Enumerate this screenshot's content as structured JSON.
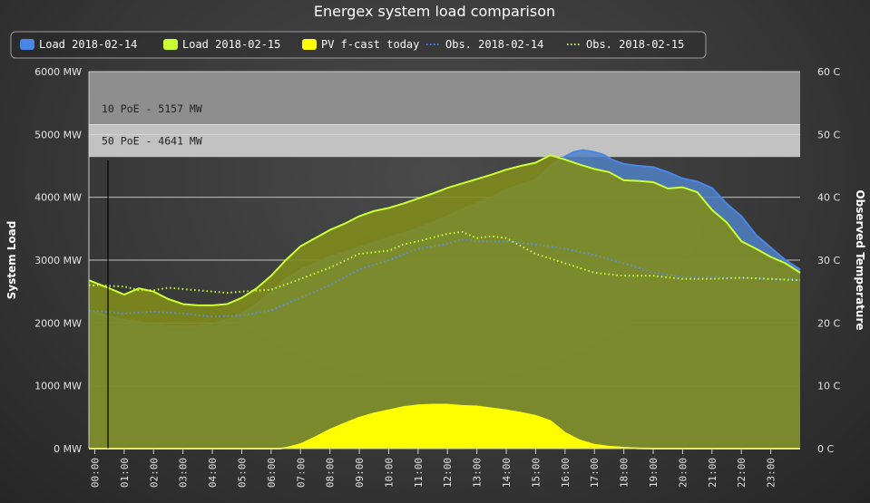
{
  "chart_data": {
    "type": "area",
    "title": "Energex system load comparison",
    "x_labels": [
      "00:00",
      "01:00",
      "02:00",
      "03:00",
      "04:00",
      "05:00",
      "06:00",
      "07:00",
      "08:00",
      "09:00",
      "10:00",
      "11:00",
      "12:00",
      "13:00",
      "14:00",
      "15:00",
      "16:00",
      "17:00",
      "18:00",
      "19:00",
      "20:00",
      "21:00",
      "22:00",
      "23:00"
    ],
    "y_left": {
      "label": "System Load",
      "min": 0,
      "max": 6000,
      "step": 1000,
      "tick_labels": [
        "0 MW",
        "1000 MW",
        "2000 MW",
        "3000 MW",
        "4000 MW",
        "5000 MW",
        "6000 MW"
      ]
    },
    "y_right": {
      "label": "Observed Temperature",
      "min": 0,
      "max": 60,
      "step": 10,
      "tick_labels": [
        "0 C",
        "10 C",
        "20 C",
        "30 C",
        "40 C",
        "50 C",
        "60 C"
      ]
    },
    "plot_bands": [
      {
        "from": 5157,
        "to": 6000,
        "label": "10 PoE - 5157 MW",
        "color": "#8e8e8e"
      },
      {
        "from": 4641,
        "to": 5157,
        "label": "50 PoE - 4641 MW",
        "color": "#c2c2c2"
      }
    ],
    "legend": {
      "placement": "top",
      "items": [
        {
          "label": "Load 2018-02-14",
          "symbol": "area",
          "color": "#4a86e8"
        },
        {
          "label": "Load 2018-02-15",
          "symbol": "area",
          "color": "#ccff33"
        },
        {
          "label": "PV f-cast today",
          "symbol": "area",
          "color": "#ffff00"
        },
        {
          "label": "Obs. 2018-02-14",
          "symbol": "dotted-line",
          "color": "#4a86e8"
        },
        {
          "label": "Obs. 2018-02-15",
          "symbol": "dotted-line",
          "color": "#ccff33"
        }
      ]
    },
    "series": [
      {
        "name": "Load 2018-02-14",
        "kind": "area",
        "axis": "left",
        "color": "#4a86e8",
        "fill": "#4f81c4",
        "fill_opacity": 0.85,
        "points": [
          [
            -0.2,
            2200
          ],
          [
            0.5,
            2100
          ],
          [
            1,
            2050
          ],
          [
            2,
            1980
          ],
          [
            2.5,
            1950
          ],
          [
            3,
            1940
          ],
          [
            3.5,
            1950
          ],
          [
            4,
            1980
          ],
          [
            4.5,
            2050
          ],
          [
            5,
            2150
          ],
          [
            5.5,
            2300
          ],
          [
            6,
            2500
          ],
          [
            6.5,
            2700
          ],
          [
            7,
            2850
          ],
          [
            7.5,
            2950
          ],
          [
            8,
            3050
          ],
          [
            8.5,
            3120
          ],
          [
            9,
            3200
          ],
          [
            9.5,
            3280
          ],
          [
            10,
            3350
          ],
          [
            10.5,
            3430
          ],
          [
            11,
            3500
          ],
          [
            11.5,
            3600
          ],
          [
            12,
            3700
          ],
          [
            12.5,
            3800
          ],
          [
            13,
            3900
          ],
          [
            13.5,
            4000
          ],
          [
            14,
            4120
          ],
          [
            14.5,
            4200
          ],
          [
            15,
            4280
          ],
          [
            15.5,
            4500
          ],
          [
            16,
            4650
          ],
          [
            16.3,
            4720
          ],
          [
            16.6,
            4750
          ],
          [
            17,
            4720
          ],
          [
            17.3,
            4680
          ],
          [
            17.6,
            4600
          ],
          [
            18,
            4530
          ],
          [
            18.5,
            4500
          ],
          [
            19,
            4480
          ],
          [
            19.5,
            4400
          ],
          [
            20,
            4300
          ],
          [
            20.5,
            4250
          ],
          [
            21,
            4150
          ],
          [
            21.5,
            3900
          ],
          [
            22,
            3700
          ],
          [
            22.5,
            3400
          ],
          [
            23,
            3200
          ],
          [
            23.5,
            3000
          ],
          [
            24,
            2850
          ]
        ]
      },
      {
        "name": "Load 2018-02-15",
        "kind": "area",
        "axis": "left",
        "color": "#ccff33",
        "fill": "#7f8c1e",
        "fill_opacity": 0.9,
        "points": [
          [
            -0.2,
            2680
          ],
          [
            0.5,
            2550
          ],
          [
            1,
            2450
          ],
          [
            1.5,
            2550
          ],
          [
            2,
            2500
          ],
          [
            2.5,
            2380
          ],
          [
            3,
            2300
          ],
          [
            3.5,
            2280
          ],
          [
            4,
            2280
          ],
          [
            4.5,
            2300
          ],
          [
            5,
            2400
          ],
          [
            5.5,
            2550
          ],
          [
            6,
            2750
          ],
          [
            6.5,
            3000
          ],
          [
            7,
            3220
          ],
          [
            7.5,
            3350
          ],
          [
            8,
            3480
          ],
          [
            8.5,
            3580
          ],
          [
            9,
            3700
          ],
          [
            9.5,
            3780
          ],
          [
            10,
            3830
          ],
          [
            10.5,
            3900
          ],
          [
            11,
            3980
          ],
          [
            11.5,
            4060
          ],
          [
            12,
            4150
          ],
          [
            12.5,
            4220
          ],
          [
            13,
            4290
          ],
          [
            13.5,
            4360
          ],
          [
            14,
            4440
          ],
          [
            14.5,
            4500
          ],
          [
            15,
            4550
          ],
          [
            15.5,
            4670
          ],
          [
            16,
            4600
          ],
          [
            16.5,
            4520
          ],
          [
            17,
            4450
          ],
          [
            17.5,
            4400
          ],
          [
            18,
            4270
          ],
          [
            18.5,
            4260
          ],
          [
            19,
            4240
          ],
          [
            19.5,
            4140
          ],
          [
            20,
            4160
          ],
          [
            20.5,
            4080
          ],
          [
            21,
            3800
          ],
          [
            21.5,
            3600
          ],
          [
            22,
            3300
          ],
          [
            22.5,
            3180
          ],
          [
            23,
            3050
          ],
          [
            23.5,
            2950
          ],
          [
            24,
            2800
          ]
        ]
      },
      {
        "name": "PV f-cast today",
        "kind": "area",
        "axis": "left",
        "color": "#ffff00",
        "fill": "#ffff00",
        "fill_opacity": 1,
        "points": [
          [
            -0.2,
            0
          ],
          [
            6.3,
            0
          ],
          [
            6.5,
            10
          ],
          [
            7,
            70
          ],
          [
            7.5,
            180
          ],
          [
            8,
            300
          ],
          [
            8.5,
            400
          ],
          [
            9,
            490
          ],
          [
            9.5,
            560
          ],
          [
            10,
            610
          ],
          [
            10.5,
            660
          ],
          [
            11,
            690
          ],
          [
            11.5,
            700
          ],
          [
            12,
            700
          ],
          [
            12.5,
            680
          ],
          [
            13,
            670
          ],
          [
            13.5,
            640
          ],
          [
            14,
            610
          ],
          [
            14.5,
            570
          ],
          [
            15,
            520
          ],
          [
            15.5,
            440
          ],
          [
            16,
            250
          ],
          [
            16.5,
            130
          ],
          [
            17,
            60
          ],
          [
            17.5,
            30
          ],
          [
            18,
            15
          ],
          [
            18.5,
            5
          ],
          [
            19,
            0
          ],
          [
            24,
            0
          ]
        ]
      },
      {
        "name": "Obs. 2018-02-14",
        "kind": "dotted",
        "axis": "right",
        "color": "#5b8fe8",
        "points": [
          [
            -0.2,
            22.0
          ],
          [
            1,
            21.5
          ],
          [
            2,
            21.8
          ],
          [
            3,
            21.5
          ],
          [
            4,
            21.0
          ],
          [
            5,
            21.2
          ],
          [
            6,
            22.0
          ],
          [
            6.5,
            23.0
          ],
          [
            7,
            24.0
          ],
          [
            8,
            26.0
          ],
          [
            9,
            28.5
          ],
          [
            10,
            30.0
          ],
          [
            11,
            31.8
          ],
          [
            12,
            32.6
          ],
          [
            12.5,
            33.3
          ],
          [
            13,
            33.0
          ],
          [
            14,
            33.0
          ],
          [
            15,
            32.5
          ],
          [
            16,
            31.8
          ],
          [
            17,
            30.8
          ],
          [
            18,
            29.5
          ],
          [
            19,
            28.0
          ],
          [
            20,
            27.3
          ],
          [
            21,
            27.3
          ],
          [
            22,
            27.2
          ],
          [
            23,
            27.0
          ],
          [
            24,
            26.8
          ]
        ]
      },
      {
        "name": "Obs. 2018-02-15",
        "kind": "dotted",
        "axis": "right",
        "color": "#ccff33",
        "points": [
          [
            -0.2,
            26.0
          ],
          [
            1,
            25.8
          ],
          [
            1.5,
            25.2
          ],
          [
            2,
            25.2
          ],
          [
            2.5,
            25.6
          ],
          [
            3,
            25.4
          ],
          [
            4,
            25.0
          ],
          [
            4.5,
            24.8
          ],
          [
            5,
            25.0
          ],
          [
            6,
            25.3
          ],
          [
            7,
            27.0
          ],
          [
            8,
            28.8
          ],
          [
            9,
            31.0
          ],
          [
            10,
            31.5
          ],
          [
            10.5,
            32.5
          ],
          [
            11,
            33.0
          ],
          [
            12,
            34.2
          ],
          [
            12.5,
            34.5
          ],
          [
            13,
            33.5
          ],
          [
            13.5,
            33.8
          ],
          [
            14,
            33.5
          ],
          [
            15,
            31.0
          ],
          [
            16,
            29.5
          ],
          [
            17,
            28.0
          ],
          [
            18,
            27.5
          ],
          [
            19,
            27.5
          ],
          [
            20,
            27.0
          ],
          [
            21,
            27.0
          ],
          [
            22,
            27.2
          ],
          [
            23,
            27.0
          ],
          [
            24,
            26.8
          ]
        ]
      }
    ],
    "vertical_marker": {
      "x": 0.45,
      "color": "#000000"
    },
    "grid": true
  }
}
